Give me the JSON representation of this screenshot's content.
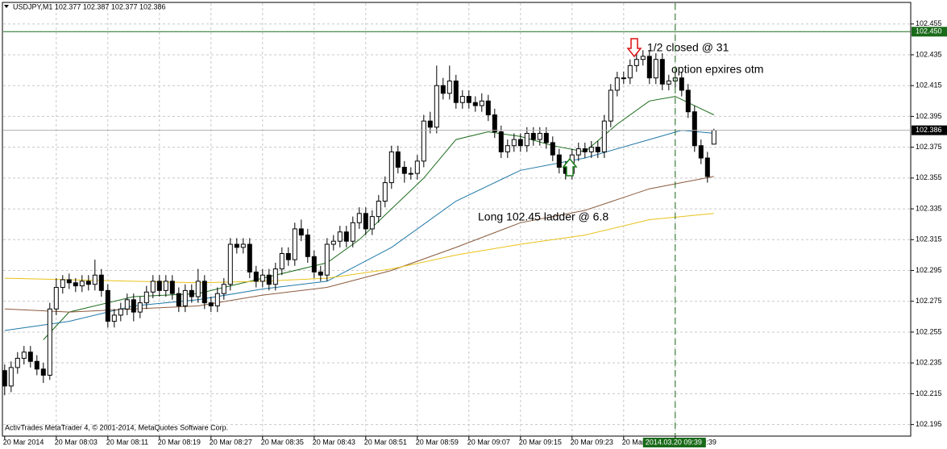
{
  "chart_data": {
    "type": "candlestick",
    "title": "USDJPY,M1  102.377 102.387 102.377 102.386",
    "footer": "ActivTrades MetaTrader 4, © 2001-2014, MetaQuotes Software Corp.",
    "xlim": [
      -0.6,
      140.4
    ],
    "ylim": [
      102.188,
      102.469
    ],
    "yticks": [
      102.455,
      102.435,
      102.415,
      102.395,
      102.375,
      102.355,
      102.335,
      102.315,
      102.295,
      102.275,
      102.255,
      102.235,
      102.215,
      102.195
    ],
    "xticks": [
      {
        "value": 0,
        "label": "20 Mar 2014"
      },
      {
        "value": 8,
        "label": "20 Mar 08:03"
      },
      {
        "value": 16,
        "label": "20 Mar 08:11"
      },
      {
        "value": 24,
        "label": "20 Mar 08:19"
      },
      {
        "value": 32,
        "label": "20 Mar 08:27"
      },
      {
        "value": 40,
        "label": "20 Mar 08:35"
      },
      {
        "value": 48,
        "label": "20 Mar 08:43"
      },
      {
        "value": 56,
        "label": "20 Mar 08:51"
      },
      {
        "value": 64,
        "label": "20 Mar 08:59"
      },
      {
        "value": 72,
        "label": "20 Mar 09:07"
      },
      {
        "value": 80,
        "label": "20 Mar 09:15"
      },
      {
        "value": 88,
        "label": "20 Mar 09:23"
      },
      {
        "value": 96,
        "label": "20 Mar 09:31"
      },
      {
        "value": 104,
        "label": "20 Mar 09:39"
      }
    ],
    "grid": true,
    "candles": {
      "open": [
        102.23,
        102.22,
        102.232,
        102.238,
        102.242,
        102.236,
        102.231,
        102.227,
        102.27,
        102.284,
        102.289,
        102.287,
        102.285,
        102.288,
        102.286,
        102.292,
        102.282,
        102.262,
        102.266,
        102.27,
        102.276,
        102.268,
        102.274,
        102.281,
        102.288,
        102.282,
        102.288,
        102.28,
        102.272,
        102.282,
        102.278,
        102.288,
        102.274,
        102.272,
        102.28,
        102.286,
        102.312,
        102.31,
        102.312,
        102.294,
        102.288,
        102.292,
        102.286,
        102.296,
        102.306,
        102.302,
        102.322,
        102.318,
        102.304,
        102.294,
        102.292,
        102.312,
        102.314,
        102.32,
        102.314,
        102.326,
        102.332,
        102.322,
        102.33,
        102.34,
        102.352,
        102.372,
        102.362,
        102.358,
        102.358,
        102.366,
        102.392,
        102.388,
        102.415,
        102.41,
        102.418,
        102.404,
        102.408,
        102.404,
        102.402,
        102.405,
        102.396,
        102.385,
        102.372,
        102.376,
        102.38,
        102.376,
        102.384,
        102.38,
        102.384,
        102.378,
        102.37,
        102.362,
        102.358,
        102.37,
        102.374,
        102.372,
        102.375,
        102.372,
        102.392,
        102.412,
        102.42,
        102.42,
        102.428,
        102.432,
        102.434,
        102.42,
        102.432,
        102.416,
        102.418,
        102.42,
        102.412,
        102.398,
        102.376,
        102.368,
        102.377
      ],
      "high": [
        102.234,
        102.236,
        102.242,
        102.246,
        102.246,
        102.24,
        102.235,
        102.274,
        102.29,
        102.292,
        102.293,
        102.29,
        102.292,
        102.292,
        102.302,
        102.296,
        102.286,
        102.27,
        102.274,
        102.28,
        102.28,
        102.278,
        102.285,
        102.292,
        102.292,
        102.292,
        102.292,
        102.284,
        102.286,
        102.286,
        102.296,
        102.292,
        102.278,
        102.284,
        102.29,
        102.316,
        102.316,
        102.316,
        102.316,
        102.298,
        102.296,
        102.296,
        102.3,
        102.31,
        102.31,
        102.326,
        102.328,
        102.322,
        102.308,
        102.298,
        102.316,
        102.318,
        102.324,
        102.324,
        102.33,
        102.336,
        102.336,
        102.334,
        102.344,
        102.356,
        102.376,
        102.376,
        102.366,
        102.362,
        102.37,
        102.396,
        102.398,
        102.428,
        102.42,
        102.428,
        102.422,
        102.412,
        102.412,
        102.408,
        102.41,
        102.409,
        102.4,
        102.389,
        102.38,
        102.384,
        102.384,
        102.388,
        102.388,
        102.388,
        102.388,
        102.382,
        102.374,
        102.366,
        102.374,
        102.378,
        102.378,
        102.379,
        102.379,
        102.396,
        102.416,
        102.424,
        102.424,
        102.432,
        102.436,
        102.438,
        102.438,
        102.436,
        102.436,
        102.422,
        102.424,
        102.424,
        102.416,
        102.402,
        102.38,
        102.372,
        102.387
      ],
      "low": [
        102.214,
        102.216,
        102.228,
        102.234,
        102.232,
        102.227,
        102.222,
        102.224,
        102.266,
        102.28,
        102.283,
        102.281,
        102.281,
        102.282,
        102.282,
        102.278,
        102.258,
        102.258,
        102.262,
        102.266,
        102.262,
        102.264,
        102.27,
        102.277,
        102.278,
        102.278,
        102.276,
        102.268,
        102.268,
        102.274,
        102.274,
        102.27,
        102.268,
        102.268,
        102.276,
        102.282,
        102.306,
        102.306,
        102.29,
        102.284,
        102.284,
        102.282,
        102.282,
        102.292,
        102.298,
        102.298,
        102.314,
        102.3,
        102.29,
        102.288,
        102.288,
        102.308,
        102.31,
        102.31,
        102.31,
        102.322,
        102.318,
        102.318,
        102.326,
        102.336,
        102.348,
        102.358,
        102.352,
        102.354,
        102.354,
        102.362,
        102.384,
        102.384,
        102.406,
        102.406,
        102.4,
        102.4,
        102.4,
        102.398,
        102.398,
        102.392,
        102.381,
        102.368,
        102.368,
        102.372,
        102.372,
        102.372,
        102.376,
        102.376,
        102.374,
        102.366,
        102.358,
        102.354,
        102.354,
        102.366,
        102.368,
        102.368,
        102.368,
        102.368,
        102.388,
        102.408,
        102.416,
        102.416,
        102.424,
        102.428,
        102.416,
        102.416,
        102.412,
        102.412,
        102.414,
        102.408,
        102.394,
        102.372,
        102.364,
        102.352,
        102.377
      ],
      "close": [
        102.22,
        102.232,
        102.238,
        102.242,
        102.236,
        102.231,
        102.227,
        102.27,
        102.284,
        102.289,
        102.287,
        102.285,
        102.288,
        102.286,
        102.292,
        102.282,
        102.262,
        102.266,
        102.27,
        102.276,
        102.268,
        102.274,
        102.281,
        102.288,
        102.282,
        102.288,
        102.28,
        102.272,
        102.282,
        102.278,
        102.288,
        102.274,
        102.272,
        102.28,
        102.286,
        102.312,
        102.31,
        102.312,
        102.294,
        102.288,
        102.292,
        102.286,
        102.296,
        102.306,
        102.302,
        102.322,
        102.318,
        102.304,
        102.294,
        102.292,
        102.312,
        102.314,
        102.32,
        102.314,
        102.326,
        102.332,
        102.322,
        102.33,
        102.34,
        102.352,
        102.372,
        102.362,
        102.358,
        102.358,
        102.366,
        102.392,
        102.388,
        102.415,
        102.41,
        102.418,
        102.404,
        102.408,
        102.404,
        102.402,
        102.405,
        102.396,
        102.385,
        102.372,
        102.376,
        102.38,
        102.376,
        102.384,
        102.38,
        102.384,
        102.378,
        102.37,
        102.362,
        102.358,
        102.37,
        102.374,
        102.372,
        102.375,
        102.372,
        102.392,
        102.412,
        102.42,
        102.42,
        102.428,
        102.432,
        102.434,
        102.42,
        102.432,
        102.416,
        102.418,
        102.42,
        102.412,
        102.398,
        102.376,
        102.368,
        102.356,
        102.386
      ]
    },
    "series": [
      {
        "color": "#1a6b1a",
        "x": [
          6,
          10,
          20,
          30,
          40,
          50,
          55,
          60,
          65,
          70,
          75,
          80,
          85,
          90,
          95,
          100,
          104,
          108,
          110
        ],
        "values": [
          102.25,
          102.268,
          102.278,
          102.28,
          102.29,
          102.3,
          102.315,
          102.335,
          102.355,
          102.38,
          102.385,
          102.382,
          102.376,
          102.372,
          102.39,
          102.405,
          102.408,
          102.4,
          102.396
        ]
      },
      {
        "color": "#1f78a8",
        "x": [
          0,
          10,
          20,
          30,
          40,
          50,
          60,
          70,
          80,
          90,
          100,
          105,
          110
        ],
        "values": [
          102.256,
          102.262,
          102.272,
          102.276,
          102.283,
          102.288,
          102.31,
          102.34,
          102.36,
          102.368,
          102.38,
          102.386,
          102.384
        ]
      },
      {
        "color": "#8b5a3c",
        "x": [
          0,
          10,
          20,
          30,
          40,
          50,
          60,
          70,
          80,
          90,
          100,
          110
        ],
        "values": [
          102.27,
          102.268,
          102.27,
          102.272,
          102.279,
          102.284,
          102.295,
          102.31,
          102.326,
          102.334,
          102.348,
          102.356
        ]
      },
      {
        "color": "#e8c21a",
        "x": [
          0,
          10,
          20,
          30,
          40,
          50,
          60,
          70,
          80,
          90,
          100,
          110
        ],
        "values": [
          102.29,
          102.289,
          102.288,
          102.287,
          102.288,
          102.29,
          102.296,
          102.305,
          102.312,
          102.318,
          102.328,
          102.332
        ]
      }
    ],
    "level_line": {
      "value": 102.45,
      "label": "102.450",
      "color": "#1a6b1a"
    },
    "current_price": 102.386,
    "cursor": {
      "x": 104,
      "label": "2014.03.20 09:39",
      "color": "#1a6b1a"
    },
    "annotations": [
      {
        "text": "1/2 closed @ 31"
      },
      {
        "text": "option epxires otm"
      },
      {
        "text": "Long 102.45 ladder @ 6.8"
      }
    ]
  }
}
